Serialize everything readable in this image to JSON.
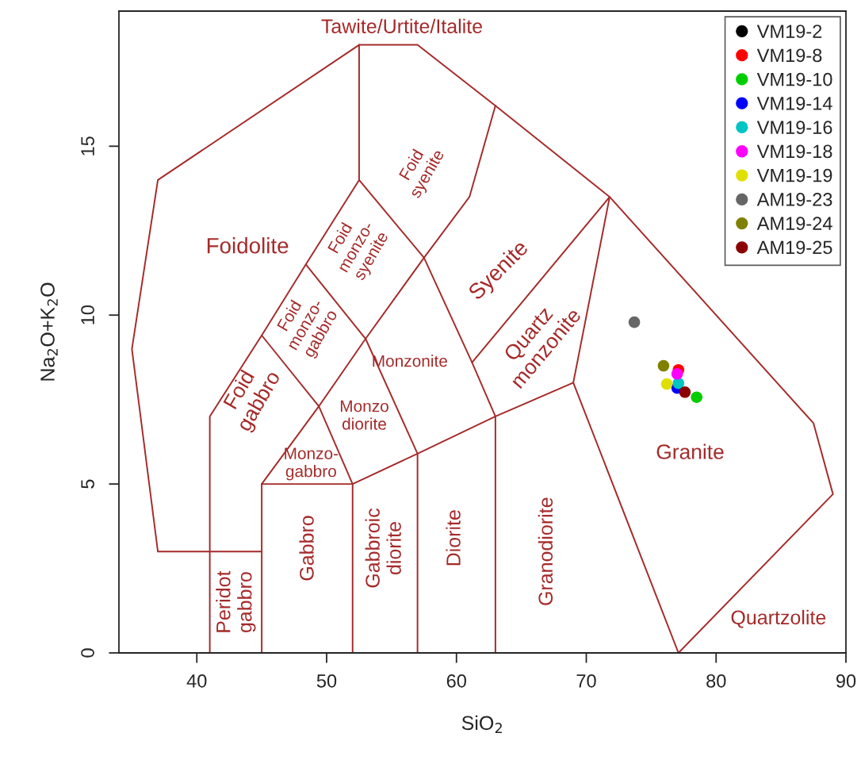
{
  "chart_data": {
    "type": "scatter",
    "xlabel": "SiO$_{2}$",
    "ylabel": "Na$_{2}$O+K$_{2}$O",
    "xlim": [
      34,
      90
    ],
    "ylim": [
      0,
      19
    ],
    "xticks": [
      40,
      50,
      60,
      70,
      80,
      90
    ],
    "yticks": [
      0,
      5,
      10,
      15
    ],
    "grid": false,
    "legend": "top right",
    "marker": "circle",
    "series": [
      {
        "type": "line",
        "marker": "none",
        "color": "#a52a2a",
        "x": [
          45,
          37,
          35,
          37,
          52.5,
          57,
          63,
          71.8,
          87.5,
          89.0,
          77.1
        ],
        "values": [
          3,
          3,
          9,
          14,
          18,
          18,
          16.2,
          13.5,
          6.8,
          4.7,
          0
        ]
      },
      {
        "type": "line",
        "marker": "none",
        "color": "#a52a2a",
        "x": [
          41,
          41,
          45,
          48.4,
          52.5,
          52.5
        ],
        "values": [
          0,
          7,
          9.4,
          11.5,
          14,
          18
        ]
      },
      {
        "type": "line",
        "marker": "none",
        "color": "#a52a2a",
        "x": [
          52.5,
          57.5,
          61,
          63
        ],
        "values": [
          14,
          11.7,
          13.5,
          16.2
        ]
      },
      {
        "type": "line",
        "marker": "none",
        "color": "#a52a2a",
        "x": [
          48.4,
          53,
          57.5
        ],
        "values": [
          11.5,
          9.3,
          11.7
        ]
      },
      {
        "type": "line",
        "marker": "none",
        "color": "#a52a2a",
        "x": [
          45,
          49.4,
          53,
          57,
          57
        ],
        "values": [
          9.4,
          7.3,
          9.3,
          5.9,
          0
        ]
      },
      {
        "type": "line",
        "marker": "none",
        "color": "#a52a2a",
        "x": [
          45,
          45,
          52,
          57,
          63,
          69,
          77.1
        ],
        "values": [
          0,
          5,
          5,
          5.9,
          7,
          8,
          0
        ]
      },
      {
        "type": "line",
        "marker": "none",
        "color": "#a52a2a",
        "x": [
          45,
          49.4,
          52,
          52
        ],
        "values": [
          5,
          7.3,
          5,
          0
        ]
      },
      {
        "type": "line",
        "marker": "none",
        "color": "#a52a2a",
        "x": [
          57.5,
          61.2,
          63,
          63
        ],
        "values": [
          11.7,
          8.6,
          7,
          0
        ]
      },
      {
        "type": "line",
        "marker": "none",
        "color": "#a52a2a",
        "x": [
          61.2,
          71.8,
          69
        ],
        "values": [
          8.6,
          13.5,
          8
        ]
      },
      {
        "name": "VM19-2",
        "color": "#000000",
        "x": [
          null
        ],
        "values": [
          null
        ]
      },
      {
        "name": "VM19-8",
        "color": "#ff0000",
        "x": [
          77.1
        ],
        "values": [
          8.38
        ]
      },
      {
        "name": "VM19-10",
        "color": "#00cd00",
        "x": [
          78.5
        ],
        "values": [
          7.57
        ]
      },
      {
        "name": "VM19-14",
        "color": "#0000ff",
        "x": [
          77.0
        ],
        "values": [
          7.84
        ]
      },
      {
        "name": "VM19-16",
        "color": "#00c5c5",
        "x": [
          77.1
        ],
        "values": [
          7.98
        ]
      },
      {
        "name": "VM19-18",
        "color": "#ff00ff",
        "x": [
          77.0
        ],
        "values": [
          8.26
        ]
      },
      {
        "name": "VM19-19",
        "color": "#e0e000",
        "x": [
          76.2
        ],
        "values": [
          7.96
        ]
      },
      {
        "name": "AM19-23",
        "color": "#666666",
        "x": [
          73.7
        ],
        "values": [
          9.79
        ]
      },
      {
        "name": "AM19-24",
        "color": "#808000",
        "x": [
          75.95
        ],
        "values": [
          8.5
        ]
      },
      {
        "name": "AM19-25",
        "color": "#8b0000",
        "x": [
          77.6
        ],
        "values": [
          7.72
        ]
      }
    ],
    "annotations": [
      "Tawite/Urtite/Italite",
      "Foidolite",
      "Foid\nsyenite",
      "Foid\nmonzo-\nsyenite",
      "Syenite",
      "Foid\nmonzo-\ngabbro",
      "Quartz\nmonzonite",
      "Monzonite",
      "Foid\ngabbro",
      "Monzo\ndiorite",
      "Monzo-\ngabbro",
      "Granite",
      "Peridot\ngabbro",
      "Gabbro",
      "Gabbroic\ndiorite",
      "Diorite",
      "Granodiorite",
      "Quartzolite"
    ]
  }
}
